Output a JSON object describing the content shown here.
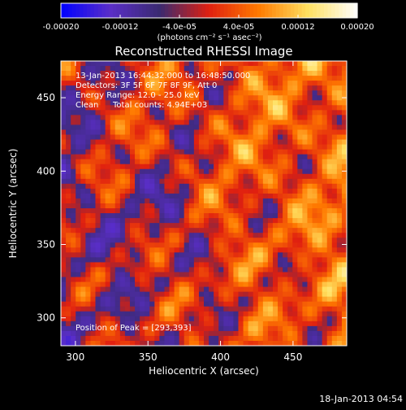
{
  "chart_data": {
    "type": "heatmap",
    "title": "Reconstructed RHESSI Image",
    "xlabel": "Heliocentric X (arcsec)",
    "ylabel": "Heliocentric Y (arcsec)",
    "xlim": [
      290,
      487
    ],
    "ylim": [
      281,
      475
    ],
    "x_ticks": [
      300,
      350,
      400,
      450
    ],
    "y_ticks": [
      300,
      350,
      400,
      450
    ],
    "x_tick_labels": [
      "300",
      "350",
      "400",
      "450"
    ],
    "y_tick_labels": [
      "300",
      "350",
      "400",
      "450"
    ],
    "colorbar": {
      "range": [
        -0.0002,
        0.0002
      ],
      "tick_values": [
        -0.0002,
        -0.00012,
        -4e-05,
        4e-05,
        0.00012,
        0.0002
      ],
      "tick_labels": [
        "-0.00020",
        "-0.00012",
        "-4.0e-05",
        "4.0e-05",
        "0.00012",
        "0.00020"
      ],
      "unit_label": "(photons cm⁻² s⁻¹ asec⁻²)",
      "colors": [
        "#0000ff",
        "#5a2ec8",
        "#3a2a70",
        "#e02010",
        "#ff7a00",
        "#ffe060",
        "#ffffff"
      ]
    },
    "annotations": {
      "time_range": "13-Jan-2013 16:44:32.000 to 16:48:50.000",
      "detectors": "Detectors: 3F 5F 6F 7F 8F 9F, Att 0",
      "energy_range": "Energy Range: 12.0 - 25.0 keV",
      "method": "Clean",
      "total_counts": "Total counts: 4.94E+03",
      "peak": "Position of Peak = [293,393]"
    },
    "peak_position": [
      293,
      393
    ],
    "grid": false
  },
  "footer": {
    "date_stamp": "18-Jan-2013 04:54"
  }
}
